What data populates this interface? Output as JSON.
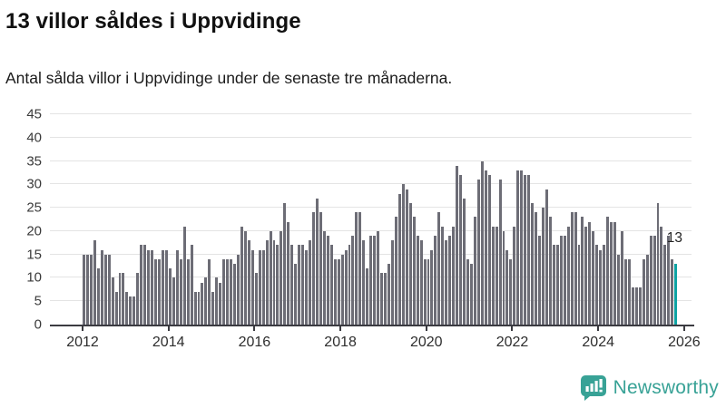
{
  "header": {
    "title": "13 villor såldes i Uppvidinge",
    "subtitle": "Antal sålda villor i Uppvidinge under de senaste tre månaderna."
  },
  "chart_data": {
    "type": "bar",
    "title": "13 villor såldes i Uppvidinge",
    "subtitle": "Antal sålda villor i Uppvidinge under de senaste tre månaderna.",
    "x_start_month": "2012-01",
    "x_end_month": "2025-10",
    "x_tick_labels": [
      "2012",
      "2014",
      "2016",
      "2018",
      "2020",
      "2022",
      "2024",
      "2026"
    ],
    "y_ticks": [
      0,
      5,
      10,
      15,
      20,
      25,
      30,
      35,
      40,
      45
    ],
    "ylim": [
      0,
      45
    ],
    "grid": true,
    "bar_color": "#6d6d76",
    "values": [
      15,
      15,
      15,
      18,
      12,
      16,
      15,
      15,
      10,
      7,
      11,
      11,
      7,
      6,
      6,
      11,
      17,
      17,
      16,
      16,
      14,
      14,
      16,
      16,
      12,
      10,
      16,
      14,
      21,
      14,
      17,
      7,
      7,
      9,
      10,
      14,
      7,
      10,
      9,
      14,
      14,
      14,
      13,
      15,
      21,
      20,
      18,
      16,
      11,
      16,
      16,
      18,
      20,
      18,
      17,
      20,
      26,
      22,
      17,
      13,
      17,
      17,
      16,
      18,
      24,
      27,
      24,
      20,
      19,
      17,
      14,
      14,
      15,
      16,
      17,
      19,
      24,
      24,
      18,
      12,
      19,
      19,
      20,
      11,
      11,
      13,
      18,
      23,
      28,
      30,
      29,
      26,
      23,
      19,
      18,
      14,
      14,
      16,
      19,
      24,
      21,
      18,
      19,
      21,
      34,
      32,
      27,
      14,
      13,
      23,
      31,
      35,
      33,
      32,
      21,
      21,
      31,
      20,
      16,
      14,
      21,
      33,
      33,
      32,
      32,
      26,
      24,
      19,
      25,
      29,
      23,
      17,
      17,
      19,
      19,
      21,
      24,
      24,
      17,
      23,
      21,
      22,
      20,
      17,
      16,
      17,
      23,
      22,
      22,
      15,
      20,
      14,
      14,
      8,
      8,
      8,
      14,
      15,
      19,
      19,
      26,
      21,
      17,
      19,
      14,
      13
    ],
    "highlight": {
      "index_from_end": 1,
      "value": 13,
      "label": "13",
      "color": "#0da3a3"
    }
  },
  "footer": {
    "brand": "Newsworthy",
    "brand_color": "#38a296"
  }
}
